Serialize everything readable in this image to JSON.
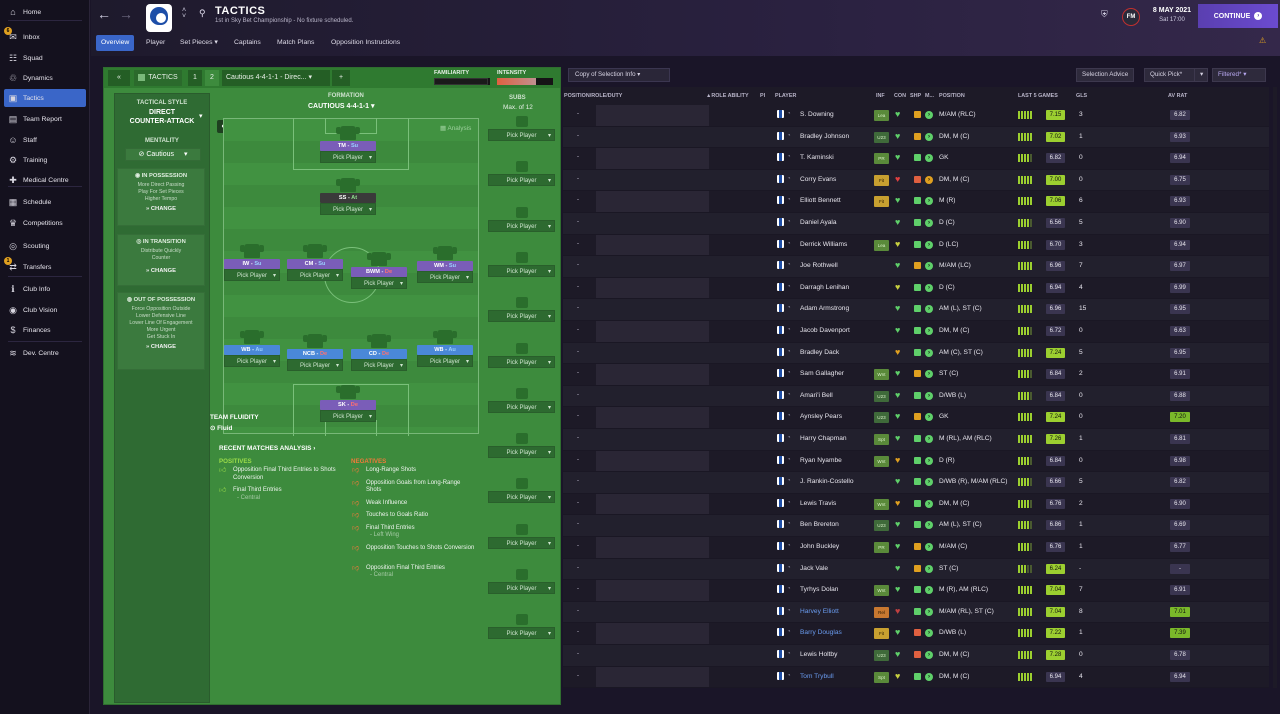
{
  "sidebar": {
    "items": [
      {
        "label": "Home",
        "icon": "home-icon"
      },
      {
        "label": "Inbox",
        "icon": "inbox-icon",
        "badge": "6"
      },
      {
        "label": "Squad",
        "icon": "squad-icon"
      },
      {
        "label": "Dynamics",
        "icon": "dynamics-icon"
      },
      {
        "label": "Tactics",
        "icon": "tactics-icon",
        "active": true
      },
      {
        "label": "Team Report",
        "icon": "team-report-icon"
      },
      {
        "label": "Staff",
        "icon": "staff-icon"
      },
      {
        "label": "Training",
        "icon": "training-icon"
      },
      {
        "label": "Medical Centre",
        "icon": "medical-icon"
      },
      {
        "label": "Schedule",
        "icon": "schedule-icon"
      },
      {
        "label": "Competitions",
        "icon": "trophy-icon"
      },
      {
        "label": "Scouting",
        "icon": "scouting-icon"
      },
      {
        "label": "Transfers",
        "icon": "transfers-icon",
        "badge": "1"
      },
      {
        "label": "Club Info",
        "icon": "club-info-icon"
      },
      {
        "label": "Club Vision",
        "icon": "club-vision-icon"
      },
      {
        "label": "Finances",
        "icon": "finances-icon"
      },
      {
        "label": "Dev. Centre",
        "icon": "dev-centre-icon"
      }
    ]
  },
  "header": {
    "title": "TACTICS",
    "subtitle": "1st in Sky Bet Championship - No fixture scheduled.",
    "tabs": [
      "Overview",
      "Player",
      "Set Pieces ▾",
      "Captains",
      "Match Plans",
      "Opposition Instructions"
    ],
    "date": "8 MAY 2021",
    "time": "Sat 17:00",
    "continue_label": "CONTINUE",
    "fm_label": "FM"
  },
  "tactics_bar": {
    "collapse": "«",
    "label": "TACTICS",
    "slot1": "1",
    "slot2": "2",
    "tactic_name": "Cautious 4-4-1-1 - Direc... ▾",
    "add": "+",
    "familiarity_label": "FAMILIARITY",
    "intensity_label": "INTENSITY",
    "familiarity": 0.97,
    "intensity": 0.7
  },
  "style": {
    "heading": "TACTICAL STYLE",
    "name_line1": "DIRECT",
    "name_line2": "COUNTER-ATTACK",
    "mentality_label": "MENTALITY",
    "mentality": "Cautious",
    "in_possession": {
      "title": "IN POSSESSION",
      "lines": [
        "More Direct Passing",
        "Play For Set Pieces",
        "Higher Tempo"
      ],
      "change": "CHANGE"
    },
    "in_transition": {
      "title": "IN TRANSITION",
      "lines": [
        "Distribute Quickly",
        "Counter"
      ],
      "change": "CHANGE"
    },
    "out_possession": {
      "title": "OUT OF POSSESSION",
      "lines": [
        "Force Opposition Outside",
        "Lower Defensive Line",
        "Lower Line Of Engagement",
        "More Urgent",
        "Get Stuck In"
      ],
      "change": "CHANGE"
    }
  },
  "formation": {
    "label": "FORMATION",
    "name": "CAUTIOUS 4-4-1-1 ▾",
    "analysis_label": "Analysis",
    "pick_label": "Pick Player",
    "team_fluidity_label": "TEAM FLUIDITY",
    "team_fluidity": "Fluid",
    "positions": [
      {
        "role": "TM",
        "duty": "Su",
        "color": "#7a5db8"
      },
      {
        "role": "SS",
        "duty": "At",
        "color": "#3a3a3a"
      },
      {
        "role": "IW",
        "duty": "Su",
        "color": "#7a5db8"
      },
      {
        "role": "CM",
        "duty": "Su",
        "color": "#7a5db8"
      },
      {
        "role": "BWM",
        "duty": "De",
        "color": "#7a5db8"
      },
      {
        "role": "WM",
        "duty": "Su",
        "color": "#7a5db8"
      },
      {
        "role": "WB",
        "duty": "Au",
        "color": "#4a88d8"
      },
      {
        "role": "NCB",
        "duty": "De",
        "color": "#4a88d8"
      },
      {
        "role": "CD",
        "duty": "De",
        "color": "#4a88d8"
      },
      {
        "role": "WB",
        "duty": "Au",
        "color": "#4a88d8"
      },
      {
        "role": "SK",
        "duty": "De",
        "color": "#7a5db8"
      }
    ]
  },
  "subs": {
    "label": "SUBS",
    "max": "Max. of 12",
    "pick_label": "Pick Player",
    "count": 12
  },
  "analysis": {
    "title": "RECENT MATCHES ANALYSIS ›",
    "positives_label": "POSITIVES",
    "negatives_label": "NEGATIVES",
    "positives": [
      {
        "text": "Opposition Final Third Entries to Shots Conversion",
        "sub": ""
      },
      {
        "text": "Final Third Entries",
        "sub": "- Central"
      }
    ],
    "negatives": [
      {
        "text": "Long-Range Shots",
        "sub": ""
      },
      {
        "text": "Opposition Goals from Long-Range Shots",
        "sub": ""
      },
      {
        "text": "Weak Influence",
        "sub": ""
      },
      {
        "text": "Touches to Goals Ratio",
        "sub": ""
      },
      {
        "text": "Final Third Entries",
        "sub": "- Left Wing"
      },
      {
        "text": "Opposition Touches to Shots Conversion",
        "sub": ""
      },
      {
        "text": "Opposition Final Third Entries",
        "sub": "- Central"
      }
    ]
  },
  "table": {
    "selection_info": "Copy of Selection Info ▾",
    "selection_advice": "Selection Advice",
    "quick_pick": "Quick Pick",
    "filtered": "Filtered",
    "headers": {
      "pos_role": "POSITION/ROLE/DUTY",
      "role_ability": "▲ROLE ABILITY",
      "pi": "PI",
      "player": "PLAYER",
      "inf": "INF",
      "con": "CON",
      "shp": "SHP",
      "m": "M...",
      "position": "POSITION",
      "last5": "LAST 5 GAMES",
      "gls": "GLS",
      "avrat": "AV RAT"
    },
    "dash": "-",
    "rows": [
      {
        "name": "S. Downing",
        "inf": "Lea",
        "heart": "#5fd06a",
        "shp": "#e0a020",
        "m": "#5fd06a",
        "position": "M/AM (RLC)",
        "rating": "7.15",
        "rc": "#9ccf30",
        "gls": "3",
        "av": "6.82",
        "avg": false,
        "nc": "#e8e6ee",
        "bars": 5
      },
      {
        "name": "Bradley Johnson",
        "inf": "U23",
        "heart": "#5fd06a",
        "shp": "#e0a020",
        "m": "#5fd06a",
        "position": "DM, M (C)",
        "rating": "7.02",
        "rc": "#9ccf30",
        "gls": "1",
        "av": "6.93",
        "avg": false,
        "nc": "#e8e6ee",
        "bars": 5
      },
      {
        "name": "T. Kaminski",
        "inf": "PR",
        "heart": "#5fd06a",
        "shp": "#5fd06a",
        "m": "#5fd06a",
        "position": "GK",
        "rating": "6.82",
        "rc": "#3a3550",
        "gls": "0",
        "av": "6.94",
        "avg": false,
        "nc": "#e8e6ee",
        "bars": 4
      },
      {
        "name": "Corry Evans",
        "inf": "Fit",
        "heart": "#e04040",
        "shp": "#e06040",
        "m": "#e0a020",
        "position": "DM, M (C)",
        "rating": "7.00",
        "rc": "#9ccf30",
        "gls": "0",
        "av": "6.75",
        "avg": false,
        "nc": "#e8e6ee",
        "bars": 5
      },
      {
        "name": "Elliott Bennett",
        "inf": "Fit",
        "heart": "#5fd06a",
        "shp": "#5fd06a",
        "m": "#5fd06a",
        "position": "M (R)",
        "rating": "7.06",
        "rc": "#9ccf30",
        "gls": "6",
        "av": "6.93",
        "avg": false,
        "nc": "#e8e6ee",
        "bars": 5
      },
      {
        "name": "Daniel Ayala",
        "inf": "",
        "heart": "#5fd06a",
        "shp": "#5fd06a",
        "m": "#5fd06a",
        "position": "D (C)",
        "rating": "6.56",
        "rc": "#3a3550",
        "gls": "5",
        "av": "6.90",
        "avg": false,
        "nc": "#e8e6ee",
        "bars": 4
      },
      {
        "name": "Derrick Williams",
        "inf": "Lea",
        "heart": "#c8d040",
        "shp": "#5fd06a",
        "m": "#5fd06a",
        "position": "D (LC)",
        "rating": "6.70",
        "rc": "#3a3550",
        "gls": "3",
        "av": "6.94",
        "avg": false,
        "nc": "#e8e6ee",
        "bars": 4
      },
      {
        "name": "Joe Rothwell",
        "inf": "",
        "heart": "#5fd06a",
        "shp": "#e0a020",
        "m": "#5fd06a",
        "position": "M/AM (LC)",
        "rating": "6.96",
        "rc": "#3a3550",
        "gls": "7",
        "av": "6.97",
        "avg": false,
        "nc": "#e8e6ee",
        "bars": 5
      },
      {
        "name": "Darragh Lenihan",
        "inf": "",
        "heart": "#c8d040",
        "shp": "#5fd06a",
        "m": "#5fd06a",
        "position": "D (C)",
        "rating": "6.94",
        "rc": "#3a3550",
        "gls": "4",
        "av": "6.99",
        "avg": false,
        "nc": "#e8e6ee",
        "bars": 5
      },
      {
        "name": "Adam Armstrong",
        "inf": "",
        "heart": "#5fd06a",
        "shp": "#5fd06a",
        "m": "#5fd06a",
        "position": "AM (L), ST (C)",
        "rating": "6.96",
        "rc": "#3a3550",
        "gls": "15",
        "av": "6.95",
        "avg": false,
        "nc": "#e8e6ee",
        "bars": 5
      },
      {
        "name": "Jacob Davenport",
        "inf": "",
        "heart": "#5fd06a",
        "shp": "#5fd06a",
        "m": "#5fd06a",
        "position": "DM, M (C)",
        "rating": "6.72",
        "rc": "#3a3550",
        "gls": "0",
        "av": "6.63",
        "avg": false,
        "nc": "#e8e6ee",
        "bars": 4
      },
      {
        "name": "Bradley Dack",
        "inf": "",
        "heart": "#e0a020",
        "shp": "#5fd06a",
        "m": "#5fd06a",
        "position": "AM (C), ST (C)",
        "rating": "7.24",
        "rc": "#9ccf30",
        "gls": "5",
        "av": "6.95",
        "avg": false,
        "nc": "#e8e6ee",
        "bars": 5
      },
      {
        "name": "Sam Gallagher",
        "inf": "Wnt",
        "heart": "#5fd06a",
        "shp": "#e0a020",
        "m": "#5fd06a",
        "position": "ST (C)",
        "rating": "6.84",
        "rc": "#3a3550",
        "gls": "2",
        "av": "6.91",
        "avg": false,
        "nc": "#e8e6ee",
        "bars": 4
      },
      {
        "name": "Amari'i Bell",
        "inf": "U23",
        "heart": "#5fd06a",
        "shp": "#5fd06a",
        "m": "#5fd06a",
        "position": "D/WB (L)",
        "rating": "6.84",
        "rc": "#3a3550",
        "gls": "0",
        "av": "6.88",
        "avg": false,
        "nc": "#e8e6ee",
        "bars": 4
      },
      {
        "name": "Aynsley Pears",
        "inf": "U23",
        "heart": "#5fd06a",
        "shp": "#e0a020",
        "m": "#5fd06a",
        "position": "GK",
        "rating": "7.24",
        "rc": "#9ccf30",
        "gls": "0",
        "av": "7.20",
        "avg": true,
        "nc": "#e8e6ee",
        "bars": 5
      },
      {
        "name": "Harry Chapman",
        "inf": "Spt",
        "heart": "#5fd06a",
        "shp": "#5fd06a",
        "m": "#5fd06a",
        "position": "M (RL), AM (RLC)",
        "rating": "7.26",
        "rc": "#9ccf30",
        "gls": "1",
        "av": "6.81",
        "avg": false,
        "nc": "#e8e6ee",
        "bars": 5
      },
      {
        "name": "Ryan Nyambe",
        "inf": "Wnt",
        "heart": "#e0a020",
        "shp": "#5fd06a",
        "m": "#5fd06a",
        "position": "D (R)",
        "rating": "6.84",
        "rc": "#3a3550",
        "gls": "0",
        "av": "6.98",
        "avg": false,
        "nc": "#e8e6ee",
        "bars": 4
      },
      {
        "name": "J. Rankin-Costello",
        "inf": "",
        "heart": "#5fd06a",
        "shp": "#5fd06a",
        "m": "#5fd06a",
        "position": "D/WB (R), M/AM (RLC)",
        "rating": "6.66",
        "rc": "#3a3550",
        "gls": "5",
        "av": "6.82",
        "avg": false,
        "nc": "#e8e6ee",
        "bars": 4
      },
      {
        "name": "Lewis Travis",
        "inf": "Wnt",
        "heart": "#e0a020",
        "shp": "#5fd06a",
        "m": "#5fd06a",
        "position": "DM, M (C)",
        "rating": "6.76",
        "rc": "#3a3550",
        "gls": "2",
        "av": "6.90",
        "avg": false,
        "nc": "#e8e6ee",
        "bars": 4
      },
      {
        "name": "Ben Brereton",
        "inf": "U23",
        "heart": "#5fd06a",
        "shp": "#5fd06a",
        "m": "#5fd06a",
        "position": "AM (L), ST (C)",
        "rating": "6.86",
        "rc": "#3a3550",
        "gls": "1",
        "av": "6.69",
        "avg": false,
        "nc": "#e8e6ee",
        "bars": 4
      },
      {
        "name": "John Buckley",
        "inf": "PR",
        "heart": "#5fd06a",
        "shp": "#e0a020",
        "m": "#5fd06a",
        "position": "M/AM (C)",
        "rating": "6.76",
        "rc": "#3a3550",
        "gls": "1",
        "av": "6.77",
        "avg": false,
        "nc": "#e8e6ee",
        "bars": 4
      },
      {
        "name": "Jack Vale",
        "inf": "",
        "heart": "#5fd06a",
        "shp": "#e0a020",
        "m": "#5fd06a",
        "position": "ST (C)",
        "rating": "6.24",
        "rc": "#9ccf30",
        "gls": "-",
        "av": "-",
        "avg": false,
        "nc": "#e8e6ee",
        "bars": 3
      },
      {
        "name": "Tyrhys Dolan",
        "inf": "Wnt",
        "heart": "#5fd06a",
        "shp": "#5fd06a",
        "m": "#5fd06a",
        "position": "M (R), AM (RLC)",
        "rating": "7.04",
        "rc": "#9ccf30",
        "gls": "7",
        "av": "6.91",
        "avg": false,
        "nc": "#e8e6ee",
        "bars": 5
      },
      {
        "name": "Harvey Elliott",
        "inf": "Rel",
        "heart": "#c04040",
        "shp": "#5fd06a",
        "m": "#5fd06a",
        "position": "M/AM (RL), ST (C)",
        "rating": "7.04",
        "rc": "#9ccf30",
        "gls": "8",
        "av": "7.01",
        "avg": true,
        "nc": "#6a9cf0",
        "bars": 5
      },
      {
        "name": "Barry Douglas",
        "inf": "Fit",
        "heart": "#5fd06a",
        "shp": "#e06040",
        "m": "#5fd06a",
        "position": "D/WB (L)",
        "rating": "7.22",
        "rc": "#9ccf30",
        "gls": "1",
        "av": "7.39",
        "avg": true,
        "nc": "#6a9cf0",
        "bars": 5
      },
      {
        "name": "Lewis Holtby",
        "inf": "U23",
        "heart": "#5fd06a",
        "shp": "#e06040",
        "m": "#5fd06a",
        "position": "DM, M (C)",
        "rating": "7.28",
        "rc": "#9ccf30",
        "gls": "0",
        "av": "6.78",
        "avg": false,
        "nc": "#e8e6ee",
        "bars": 5
      },
      {
        "name": "Tom Trybull",
        "inf": "Spt",
        "heart": "#c8d040",
        "shp": "#5fd06a",
        "m": "#5fd06a",
        "position": "DM, M (C)",
        "rating": "6.94",
        "rc": "#3a3550",
        "gls": "4",
        "av": "6.94",
        "avg": false,
        "nc": "#6a9cf0",
        "bars": 5
      }
    ]
  }
}
